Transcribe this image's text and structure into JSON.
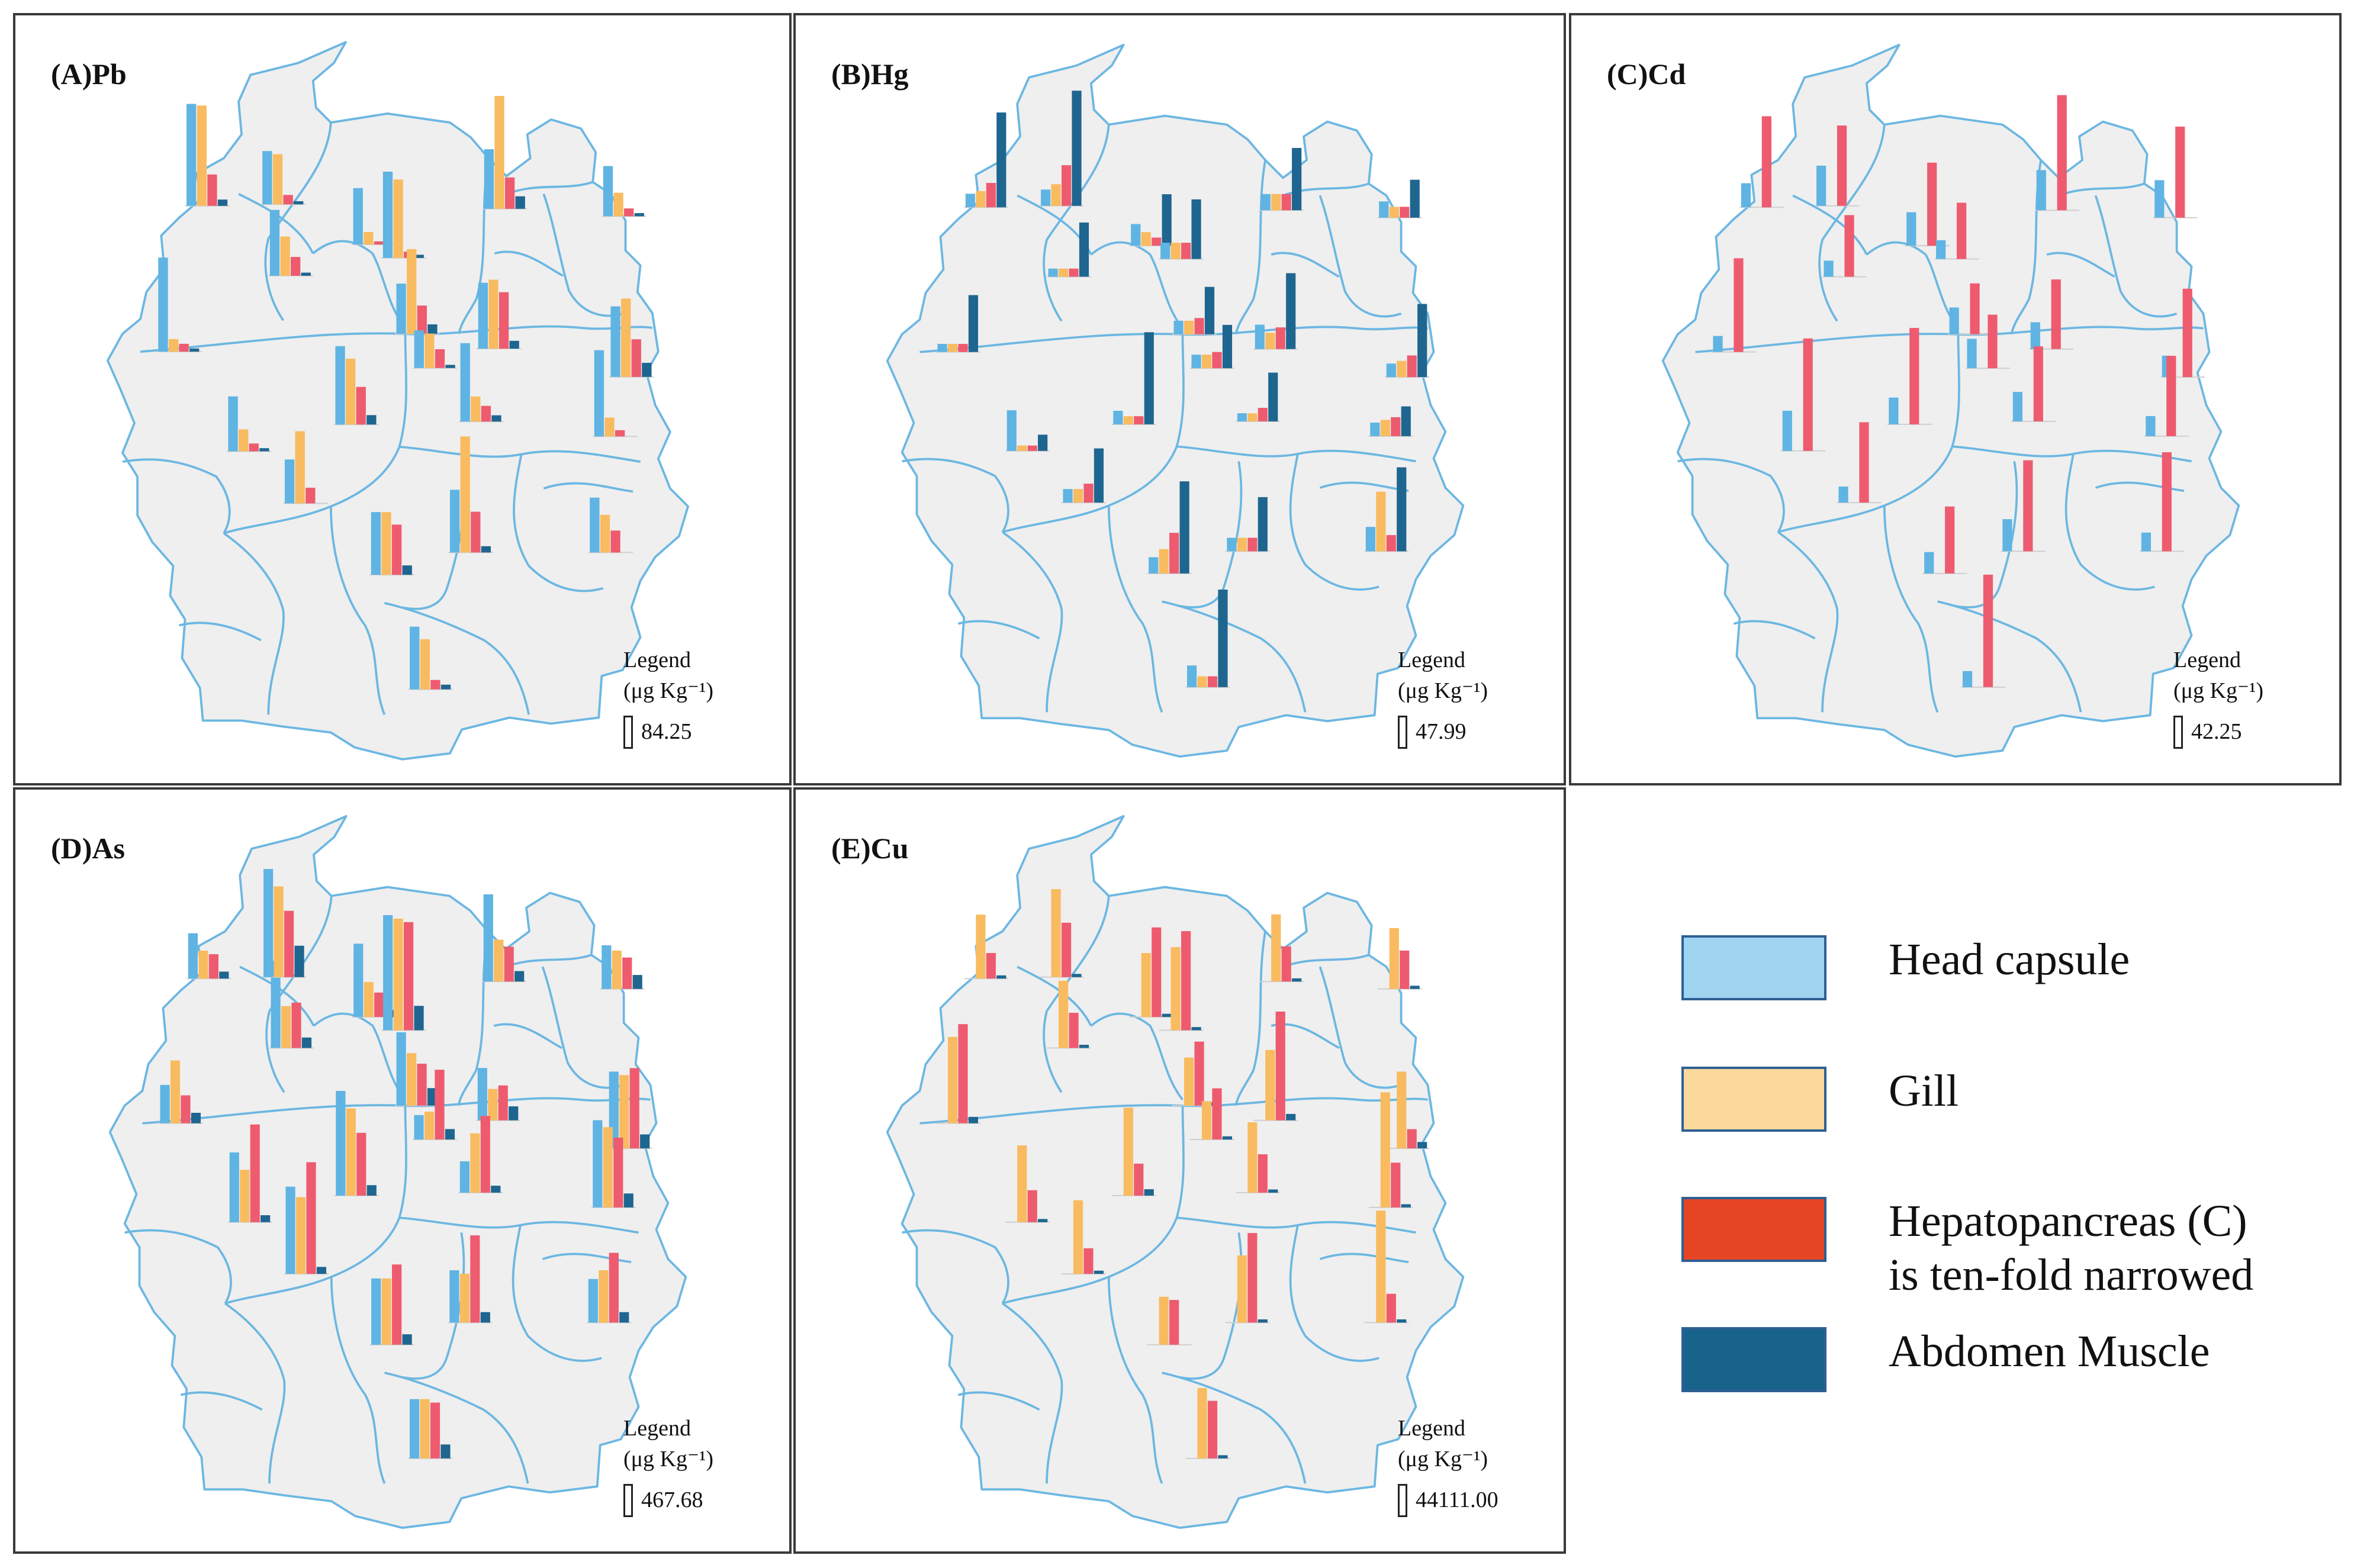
{
  "colors": {
    "head": "#5fb4e3",
    "gill": "#f9bb60",
    "hepato": "#ee5b6f",
    "muscle": "#1e6690",
    "map_fill": "#efefef",
    "map_stroke": "#6cb7e2",
    "key_head": "#9fd4f1",
    "key_gill": "#fbd89b",
    "key_hepato": "#e64524",
    "key_muscle": "#18638c"
  },
  "panels": [
    {
      "title": "(A)Pb",
      "legend": {
        "title": "Legend",
        "unit": "(μg Kg⁻¹)",
        "value": "84.25"
      },
      "bars": [
        [
          60,
          8,
          5,
          2
        ],
        [
          42,
          25,
          12,
          2
        ],
        [
          34,
          32,
          6,
          2
        ],
        [
          65,
          64,
          20,
          4
        ],
        [
          36,
          8,
          2,
          0
        ],
        [
          55,
          50,
          4,
          2
        ],
        [
          38,
          72,
          20,
          8
        ],
        [
          32,
          15,
          5,
          2
        ],
        [
          32,
          54,
          18,
          6
        ],
        [
          42,
          44,
          36,
          5
        ],
        [
          45,
          50,
          24,
          9
        ],
        [
          35,
          14,
          5,
          2
        ],
        [
          24,
          22,
          12,
          2
        ],
        [
          50,
          42,
          24,
          6
        ],
        [
          50,
          16,
          10,
          4
        ],
        [
          55,
          12,
          4,
          0
        ],
        [
          28,
          46,
          10,
          0
        ],
        [
          40,
          74,
          26,
          4
        ],
        [
          40,
          40,
          32,
          6
        ],
        [
          35,
          24,
          14,
          0
        ],
        [
          40,
          32,
          6,
          3
        ]
      ]
    },
    {
      "title": "(B)Hg",
      "legend": {
        "title": "Legend",
        "unit": "(μg Kg⁻¹)",
        "value": "47.99"
      },
      "bars": [
        [
          6,
          6,
          6,
          42
        ],
        [
          6,
          6,
          6,
          40
        ],
        [
          12,
          16,
          30,
          85
        ],
        [
          10,
          12,
          18,
          70
        ],
        [
          16,
          10,
          6,
          38
        ],
        [
          12,
          12,
          12,
          44
        ],
        [
          12,
          12,
          12,
          46
        ],
        [
          12,
          8,
          8,
          28
        ],
        [
          10,
          10,
          12,
          35
        ],
        [
          18,
          12,
          16,
          56
        ],
        [
          10,
          12,
          16,
          54
        ],
        [
          30,
          4,
          4,
          12
        ],
        [
          10,
          10,
          12,
          32
        ],
        [
          10,
          6,
          6,
          68
        ],
        [
          6,
          6,
          10,
          36
        ],
        [
          10,
          12,
          14,
          22
        ],
        [
          10,
          10,
          14,
          40
        ],
        [
          10,
          10,
          10,
          40
        ],
        [
          12,
          18,
          30,
          68
        ],
        [
          18,
          44,
          12,
          62
        ],
        [
          16,
          8,
          8,
          72
        ]
      ]
    },
    {
      "title": "(C)Cd",
      "legend": {
        "title": "Legend",
        "unit": "(μg Kg⁻¹)",
        "value": "42.25"
      },
      "bars": [
        [
          12,
          0,
          70,
          0
        ],
        [
          12,
          0,
          46,
          0
        ],
        [
          30,
          0,
          60,
          0
        ],
        [
          18,
          0,
          68,
          0
        ],
        [
          25,
          0,
          62,
          0
        ],
        [
          14,
          0,
          42,
          0
        ],
        [
          30,
          0,
          86,
          0
        ],
        [
          28,
          0,
          68,
          0
        ],
        [
          20,
          0,
          38,
          0
        ],
        [
          20,
          0,
          52,
          0
        ],
        [
          16,
          0,
          66,
          0
        ],
        [
          30,
          0,
          84,
          0
        ],
        [
          22,
          0,
          40,
          0
        ],
        [
          20,
          0,
          72,
          0
        ],
        [
          22,
          0,
          56,
          0
        ],
        [
          15,
          0,
          60,
          0
        ],
        [
          12,
          0,
          60,
          0
        ],
        [
          24,
          0,
          68,
          0
        ],
        [
          16,
          0,
          50,
          0
        ],
        [
          14,
          0,
          74,
          0
        ],
        [
          12,
          0,
          84,
          0
        ]
      ]
    },
    {
      "title": "(D)As",
      "legend": {
        "title": "Legend",
        "unit": "(μg Kg⁻¹)",
        "value": "467.68"
      },
      "bars": [
        [
          22,
          36,
          16,
          6
        ],
        [
          50,
          24,
          26,
          6
        ],
        [
          62,
          52,
          38,
          18
        ],
        [
          26,
          16,
          14,
          4
        ],
        [
          42,
          20,
          14,
          4
        ],
        [
          66,
          64,
          62,
          14
        ],
        [
          50,
          24,
          20,
          6
        ],
        [
          25,
          22,
          18,
          8
        ],
        [
          42,
          30,
          24,
          10
        ],
        [
          30,
          18,
          20,
          8
        ],
        [
          44,
          42,
          46,
          8
        ],
        [
          40,
          30,
          56,
          4
        ],
        [
          14,
          16,
          40,
          6
        ],
        [
          60,
          50,
          36,
          6
        ],
        [
          18,
          34,
          44,
          4
        ],
        [
          50,
          46,
          40,
          8
        ],
        [
          50,
          44,
          64,
          4
        ],
        [
          30,
          28,
          50,
          6
        ],
        [
          38,
          38,
          46,
          6
        ],
        [
          25,
          30,
          40,
          6
        ],
        [
          34,
          34,
          32,
          8
        ]
      ]
    },
    {
      "title": "(E)Cu",
      "legend": {
        "title": "Legend",
        "unit": "(μg Kg⁻¹)",
        "value": "44111.00"
      },
      "bars": [
        [
          0,
          54,
          62,
          4
        ],
        [
          0,
          42,
          22,
          2
        ],
        [
          0,
          55,
          34,
          2
        ],
        [
          0,
          40,
          16,
          2
        ],
        [
          0,
          40,
          56,
          2
        ],
        [
          0,
          52,
          62,
          2
        ],
        [
          0,
          42,
          22,
          2
        ],
        [
          0,
          38,
          24,
          2
        ],
        [
          0,
          30,
          40,
          2
        ],
        [
          0,
          44,
          68,
          4
        ],
        [
          0,
          48,
          12,
          4
        ],
        [
          0,
          48,
          20,
          2
        ],
        [
          0,
          24,
          32,
          2
        ],
        [
          0,
          55,
          20,
          4
        ],
        [
          0,
          44,
          24,
          2
        ],
        [
          0,
          72,
          28,
          2
        ],
        [
          0,
          46,
          16,
          2
        ],
        [
          0,
          42,
          56,
          2
        ],
        [
          0,
          30,
          28,
          0
        ],
        [
          0,
          70,
          18,
          2
        ],
        [
          0,
          44,
          36,
          2
        ]
      ]
    }
  ],
  "key": [
    {
      "label": "Head capsule"
    },
    {
      "label": "Gill"
    },
    {
      "label": "Hepatopancreas (C)",
      "label2": "is ten-fold narrowed"
    },
    {
      "label": "Abdomen Muscle"
    }
  ]
}
